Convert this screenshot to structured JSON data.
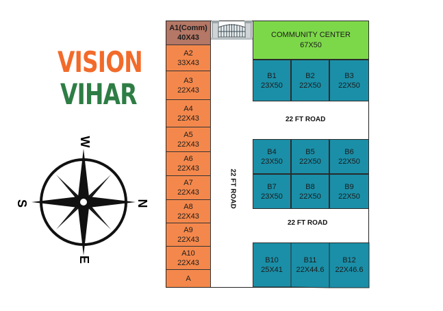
{
  "logo": {
    "line1": "VISION",
    "line2": "VIHAR",
    "color1": "#f26b2a",
    "color2": "#2e7d45"
  },
  "compass": {
    "n": "N",
    "s": "S",
    "e": "E",
    "w": "W",
    "icon": "compass-rose-icon"
  },
  "gate": {
    "icon": "gate-icon"
  },
  "colors": {
    "orange": "#f4884c",
    "brown": "#b57766",
    "teal": "#1b8fa8",
    "green": "#7dd849"
  },
  "a_plots": [
    {
      "name": "A1(Comm)",
      "size": "40X43"
    },
    {
      "name": "A2",
      "size": "33X43"
    },
    {
      "name": "A3",
      "size": "22X43"
    },
    {
      "name": "A4",
      "size": "22X43"
    },
    {
      "name": "A5",
      "size": "22X43"
    },
    {
      "name": "A6",
      "size": "22X43"
    },
    {
      "name": "A7",
      "size": "22X43"
    },
    {
      "name": "A8",
      "size": "22X43"
    },
    {
      "name": "A9",
      "size": "22X43"
    },
    {
      "name": "A10",
      "size": "22X43"
    },
    {
      "name": "A",
      "size": ""
    }
  ],
  "community_center": {
    "name": "COMMUNITY CENTER",
    "size": "67X50"
  },
  "b_plots": [
    {
      "name": "B1",
      "size": "23X50"
    },
    {
      "name": "B2",
      "size": "22X50"
    },
    {
      "name": "B3",
      "size": "22X50"
    },
    {
      "name": "B4",
      "size": "23X50"
    },
    {
      "name": "B5",
      "size": "22X50"
    },
    {
      "name": "B6",
      "size": "22X50"
    },
    {
      "name": "B7",
      "size": "23X50"
    },
    {
      "name": "B8",
      "size": "22X50"
    },
    {
      "name": "B9",
      "size": "22X50"
    },
    {
      "name": "B10",
      "size": "25X41"
    },
    {
      "name": "B11",
      "size": "22X44.6"
    },
    {
      "name": "B12",
      "size": "22X46.6"
    }
  ],
  "roads": {
    "vertical": "22 FT ROAD",
    "horizontal_1": "22 FT ROAD",
    "horizontal_2": "22 FT ROAD"
  }
}
